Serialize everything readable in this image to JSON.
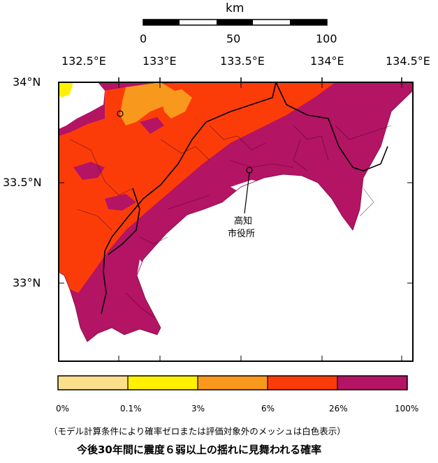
{
  "scale_bar": {
    "unit": "km",
    "ticks": [
      "0",
      "50",
      "100"
    ]
  },
  "longitude_labels": [
    "132.5°E",
    "133°E",
    "133.5°E",
    "134°E",
    "134.5°E"
  ],
  "latitude_labels": [
    "34°N",
    "33.5°N",
    "33°N"
  ],
  "annotation": {
    "line1": "高知",
    "line2": "市役所"
  },
  "legend": {
    "colors": [
      "#fcdf8b",
      "#fff000",
      "#f8981c",
      "#fc3c08",
      "#b41464"
    ],
    "tick_labels": [
      "0%",
      "0.1%",
      "3%",
      "6%",
      "26%",
      "100%"
    ]
  },
  "note": "（モデル計算条件により確率ゼロまたは評価対象外のメッシュは白色表示）",
  "title": "今後30年間に震度６弱以上の揺れに見舞われる確率",
  "palette": {
    "sea": "#ffffff",
    "border": "#000000",
    "inner_lines": "#3a0020"
  }
}
